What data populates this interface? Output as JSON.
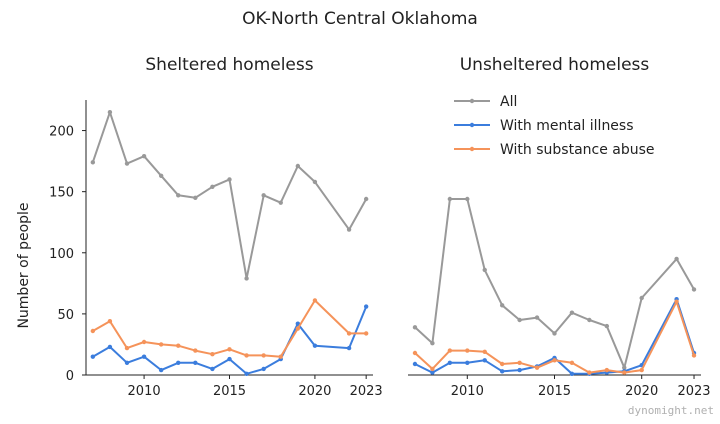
{
  "suptitle": "OK-North Central Oklahoma",
  "watermark": "dynomight.net",
  "colors": {
    "all": "#999999",
    "mental": "#3b7ddd",
    "substance": "#f5935a"
  },
  "chart_data": [
    {
      "type": "line",
      "title": "Sheltered homeless",
      "ylabel": "Number of people",
      "xlabel": "",
      "xlim": [
        2006.6,
        2023.4
      ],
      "ylim": [
        0,
        225
      ],
      "xticks": [
        2010,
        2015,
        2020,
        2023
      ],
      "yticks": [
        0,
        50,
        100,
        150,
        200
      ],
      "grid": false,
      "series": [
        {
          "name": "All",
          "color": "all",
          "x": [
            2007,
            2008,
            2009,
            2010,
            2011,
            2012,
            2013,
            2014,
            2015,
            2016,
            2017,
            2018,
            2019,
            2020,
            2022,
            2023
          ],
          "y": [
            174,
            215,
            173,
            179,
            163,
            147,
            145,
            154,
            160,
            79,
            147,
            141,
            171,
            158,
            119,
            144
          ]
        },
        {
          "name": "With mental illness",
          "color": "mental",
          "x": [
            2007,
            2008,
            2009,
            2010,
            2011,
            2012,
            2013,
            2014,
            2015,
            2016,
            2017,
            2018,
            2019,
            2020,
            2022,
            2023
          ],
          "y": [
            15,
            23,
            10,
            15,
            4,
            10,
            10,
            5,
            13,
            1,
            5,
            13,
            42,
            24,
            22,
            56
          ]
        },
        {
          "name": "With substance abuse",
          "color": "substance",
          "x": [
            2007,
            2008,
            2009,
            2010,
            2011,
            2012,
            2013,
            2014,
            2015,
            2016,
            2017,
            2018,
            2019,
            2020,
            2022,
            2023
          ],
          "y": [
            36,
            44,
            22,
            27,
            25,
            24,
            20,
            17,
            21,
            16,
            16,
            15,
            38,
            61,
            34,
            34
          ]
        }
      ]
    },
    {
      "type": "line",
      "title": "Unsheltered homeless",
      "ylabel": "",
      "xlabel": "",
      "xlim": [
        2006.6,
        2023.4
      ],
      "ylim": [
        0,
        225
      ],
      "xticks": [
        2010,
        2015,
        2020,
        2023
      ],
      "yticks": [],
      "grid": false,
      "legend": "top-right",
      "series": [
        {
          "name": "All",
          "color": "all",
          "x": [
            2007,
            2008,
            2009,
            2010,
            2011,
            2012,
            2013,
            2014,
            2015,
            2016,
            2017,
            2018,
            2019,
            2020,
            2022,
            2023
          ],
          "y": [
            39,
            26,
            144,
            144,
            86,
            57,
            45,
            47,
            34,
            51,
            45,
            40,
            6,
            63,
            95,
            70
          ]
        },
        {
          "name": "With mental illness",
          "color": "mental",
          "x": [
            2007,
            2008,
            2009,
            2010,
            2011,
            2012,
            2013,
            2014,
            2015,
            2016,
            2017,
            2018,
            2019,
            2020,
            2022,
            2023
          ],
          "y": [
            9,
            2,
            10,
            10,
            12,
            3,
            4,
            7,
            14,
            1,
            1,
            2,
            3,
            8,
            62,
            18
          ]
        },
        {
          "name": "With substance abuse",
          "color": "substance",
          "x": [
            2007,
            2008,
            2009,
            2010,
            2011,
            2012,
            2013,
            2014,
            2015,
            2016,
            2017,
            2018,
            2019,
            2020,
            2022,
            2023
          ],
          "y": [
            18,
            5,
            20,
            20,
            19,
            9,
            10,
            6,
            12,
            10,
            2,
            4,
            2,
            4,
            60,
            16
          ]
        }
      ]
    }
  ]
}
